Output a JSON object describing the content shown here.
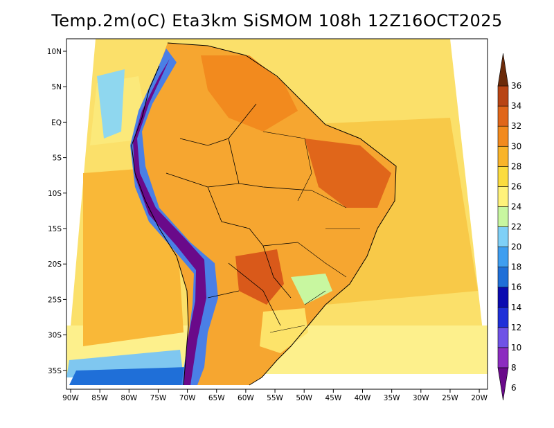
{
  "title": "Temp.2m(oC) Eta3km SiSMOM 108h 12Z16OCT2025",
  "lat_labels": [
    "10N",
    "5N",
    "EQ",
    "5S",
    "10S",
    "15S",
    "20S",
    "25S",
    "30S",
    "35S"
  ],
  "lon_labels": [
    "90W",
    "85W",
    "80W",
    "75W",
    "70W",
    "65W",
    "60W",
    "55W",
    "50W",
    "45W",
    "40W",
    "35W",
    "30W",
    "25W",
    "20W"
  ],
  "colorbar": {
    "labels": [
      "6",
      "8",
      "10",
      "12",
      "14",
      "16",
      "18",
      "20",
      "22",
      "24",
      "26",
      "28",
      "30",
      "32",
      "34",
      "36"
    ],
    "colors": [
      "#6a0a8a",
      "#8c2cc0",
      "#6f52e6",
      "#1f2fd8",
      "#0a0ab0",
      "#1f6fd8",
      "#3e9ef0",
      "#7fd0f7",
      "#c8f7a0",
      "#fff27a",
      "#fbdc3f",
      "#f9b42a",
      "#f28a1e",
      "#e0661a",
      "#b84414",
      "#6b2a0a"
    ]
  },
  "colors": {
    "ocean_warm": "#f9b838",
    "ocean_mid": "#f8d245",
    "ocean_cool": "#fbe97a",
    "land_warm": "#f28a1e",
    "land_hot": "#e0661a",
    "andes_cold": "#6a0a8a"
  }
}
